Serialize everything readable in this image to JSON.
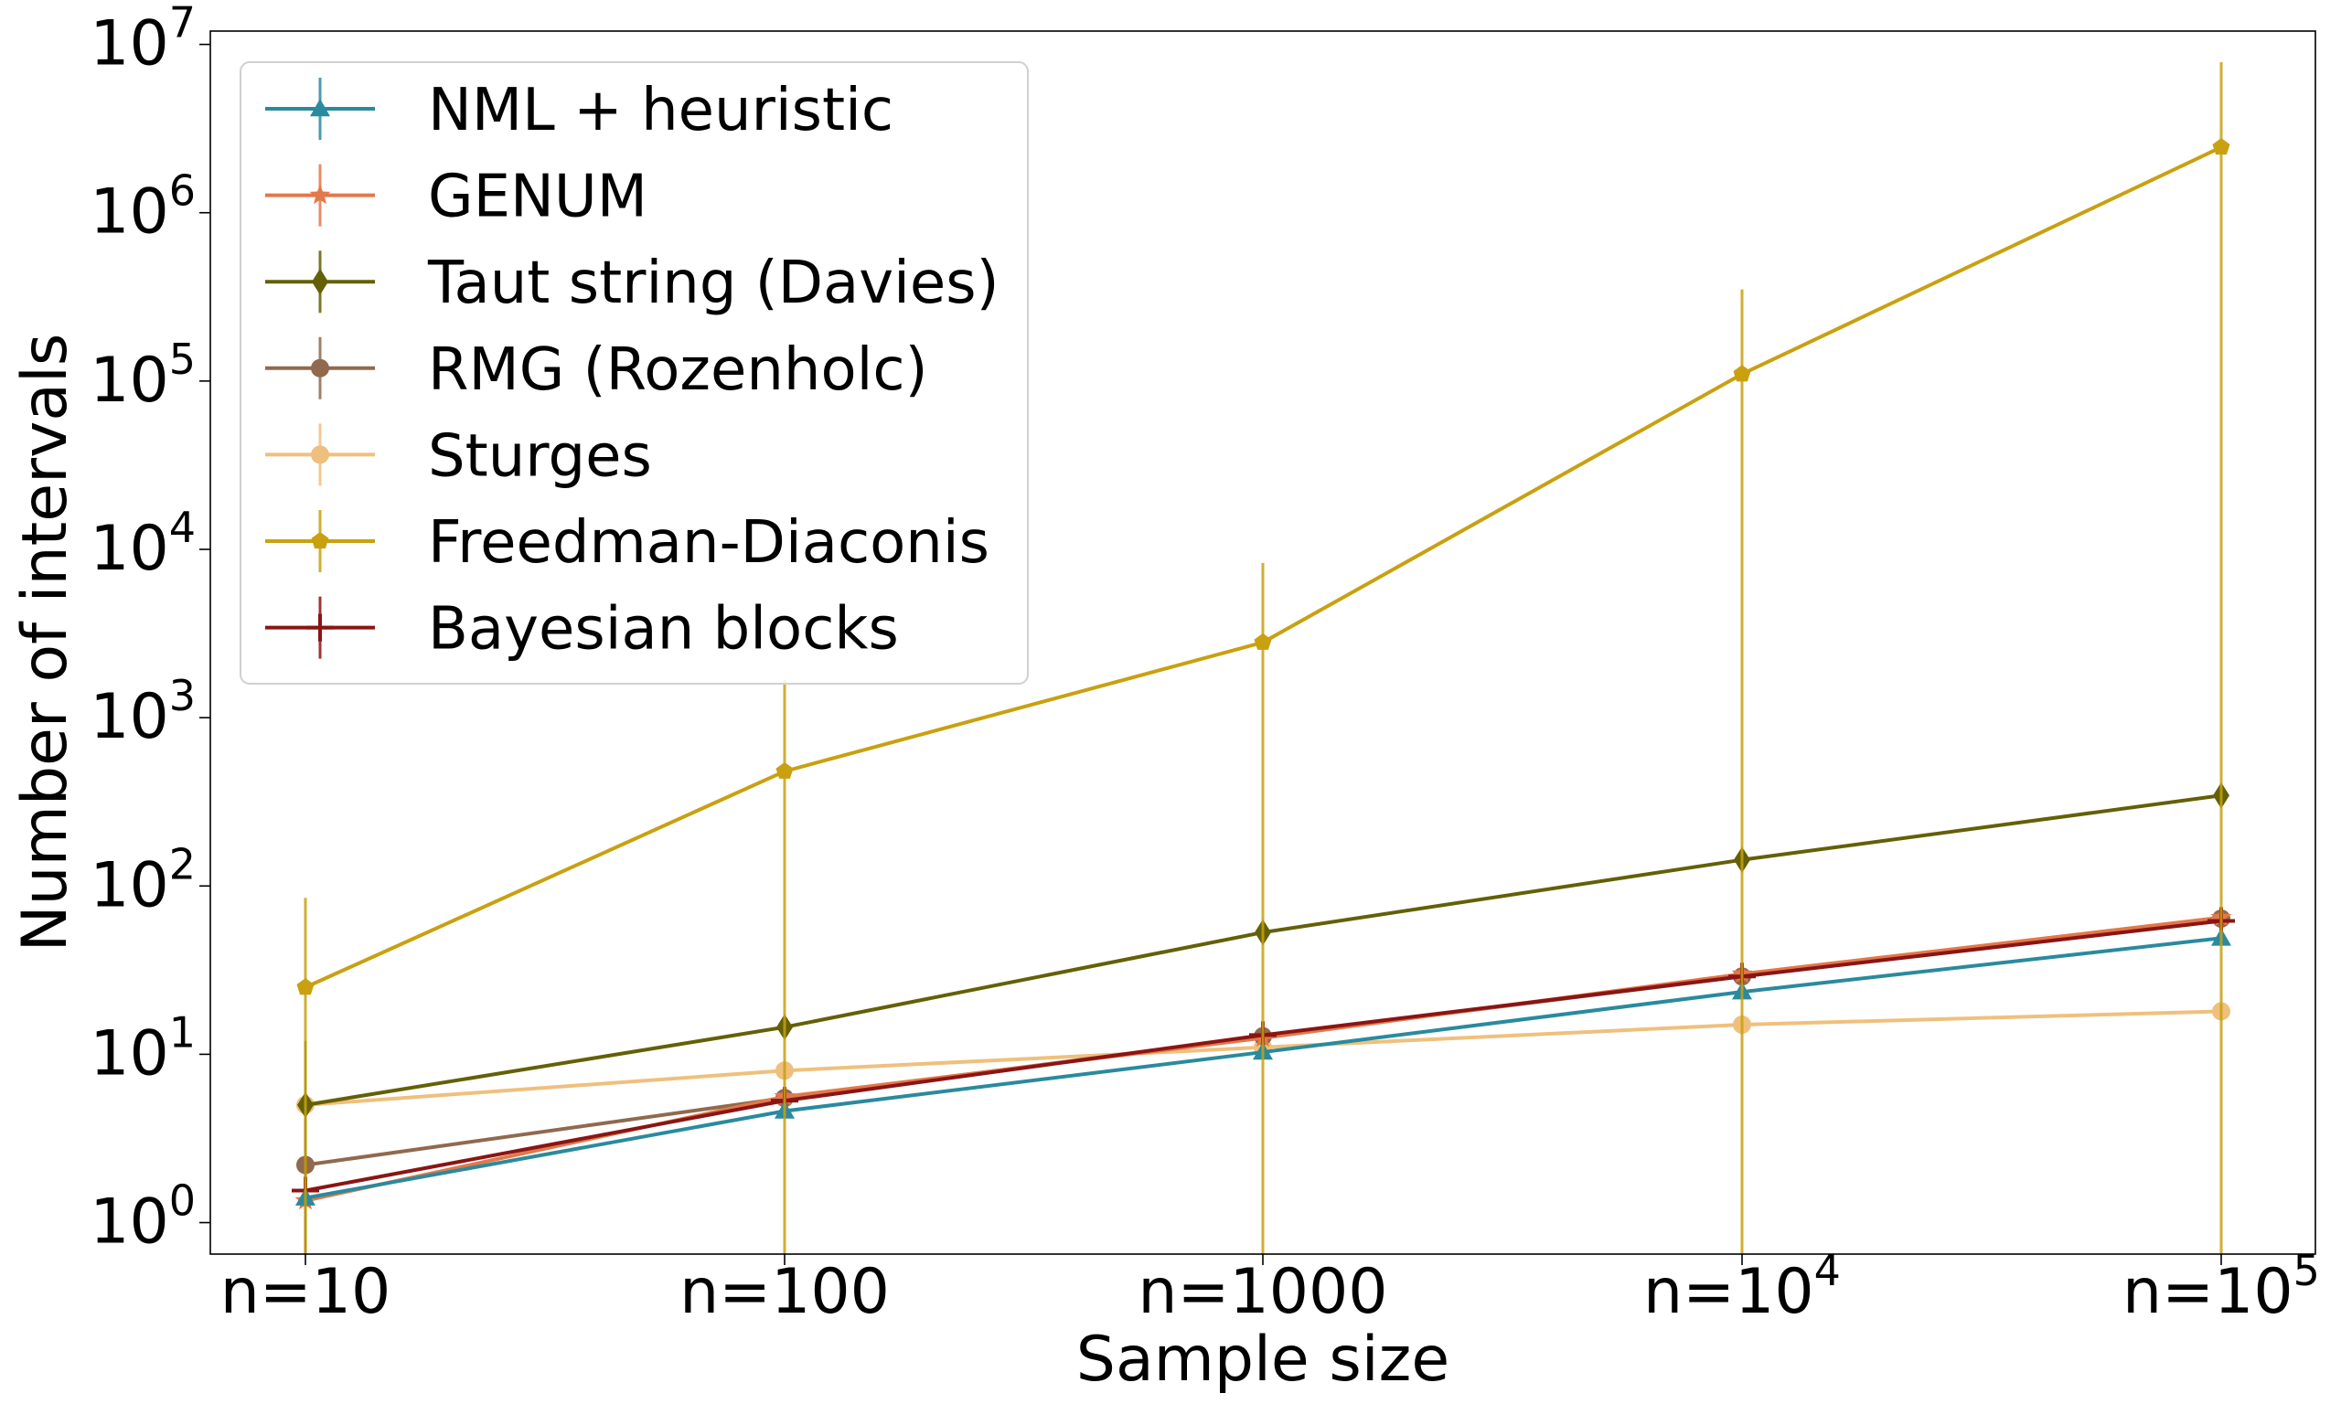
{
  "chart_data": {
    "type": "line",
    "title": "",
    "xlabel": "Sample size",
    "ylabel": "Number of intervals",
    "yscale": "log",
    "ylim": [
      0.65,
      12000000
    ],
    "ytick_values": [
      1,
      10,
      100,
      1000,
      10000,
      100000,
      1000000,
      10000000
    ],
    "ytick_bases": [
      "10",
      "10",
      "10",
      "10",
      "10",
      "10",
      "10",
      "10"
    ],
    "ytick_exponents": [
      "0",
      "1",
      "2",
      "3",
      "4",
      "5",
      "6",
      "7"
    ],
    "categories": [
      "n=10",
      "n=100",
      "n=1000",
      "n=10",
      "n=10"
    ],
    "category_exponents": [
      "",
      "",
      "",
      "4",
      "5"
    ],
    "legend_position": "upper-left",
    "series": [
      {
        "name": "NML + heuristic",
        "color": "#2a8a9e",
        "marker": "triangle",
        "values": [
          1.4,
          4.6,
          10.3,
          23.5,
          49
        ],
        "err_up": [
          0,
          0,
          0,
          0,
          0
        ],
        "err_down": [
          0,
          0,
          0,
          0,
          0
        ]
      },
      {
        "name": "GENUM",
        "color": "#e3784a",
        "marker": "star",
        "values": [
          1.35,
          5.6,
          12.5,
          30,
          65
        ],
        "err_up": [
          0,
          0,
          0,
          0,
          0
        ],
        "err_down": [
          0,
          0,
          0,
          0,
          0
        ]
      },
      {
        "name": "Taut string (Davies)",
        "color": "#636006",
        "marker": "diamond",
        "values": [
          5,
          14.5,
          53,
          143,
          345
        ],
        "err_up": [
          7.0,
          0,
          0,
          0,
          0
        ],
        "err_down": [
          4.2,
          0,
          0,
          0,
          0
        ]
      },
      {
        "name": "RMG (Rozenholc)",
        "color": "#90694e",
        "marker": "circle",
        "values": [
          2.2,
          5.5,
          12.8,
          29,
          64
        ],
        "err_up": [
          3.1,
          0,
          0,
          0,
          0
        ],
        "err_down": [
          1.5,
          0,
          0,
          0,
          0
        ]
      },
      {
        "name": "Sturges",
        "color": "#efc07d",
        "marker": "circle",
        "values": [
          5,
          8,
          11,
          15,
          18
        ],
        "err_up": [
          0,
          0,
          0,
          0,
          0
        ],
        "err_down": [
          0,
          0,
          0,
          0,
          0
        ]
      },
      {
        "name": "Freedman-Diaconis",
        "color": "#c9a010",
        "marker": "pentagon",
        "values": [
          25,
          480,
          2800,
          110000,
          2450000
        ],
        "err_up": [
          60,
          1200,
          5500,
          240000,
          5400000
        ],
        "err_down": [
          25,
          480,
          2800,
          110000,
          2450000
        ]
      },
      {
        "name": "Bayesian blocks",
        "color": "#8b1414",
        "marker": "plus",
        "values": [
          1.55,
          5.3,
          13,
          29,
          62
        ],
        "err_up": [
          2.5,
          0,
          0,
          0,
          0
        ],
        "err_down": [
          1.0,
          0,
          0,
          0,
          0
        ]
      }
    ]
  }
}
